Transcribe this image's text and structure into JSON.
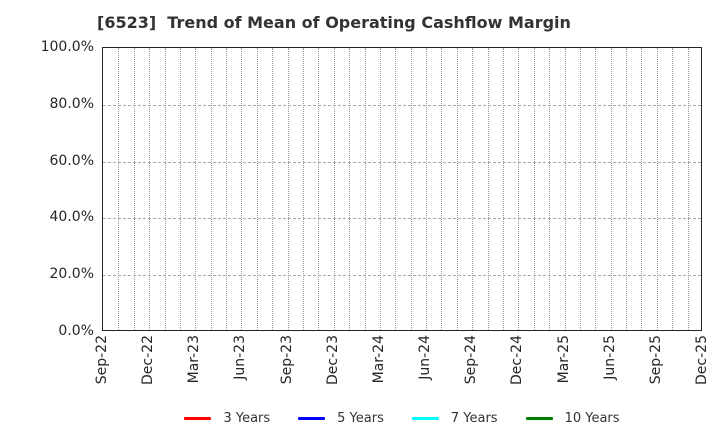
{
  "chart_data": {
    "type": "line",
    "title": "[6523]  Trend of Mean of Operating Cashflow Margin",
    "stock_code": "6523",
    "xlabel": "",
    "ylabel": "",
    "ylim": [
      0,
      100
    ],
    "y_tick_labels": [
      "100.0%",
      "80.0%",
      "60.0%",
      "40.0%",
      "20.0%",
      "0.0%"
    ],
    "x_tick_labels": [
      "Sep-22",
      "Dec-22",
      "Mar-23",
      "Jun-23",
      "Sep-23",
      "Dec-23",
      "Mar-24",
      "Jun-24",
      "Sep-24",
      "Dec-24",
      "Mar-25",
      "Jun-25",
      "Sep-25",
      "Dec-25"
    ],
    "x_months_between_ticks": 3,
    "x_month_intervals_total": 39,
    "grid": true,
    "grid_style": {
      "vertical": "dotted-monthly",
      "horizontal": "dashed-every-20pct",
      "color": "#aaaaaa"
    },
    "legend_position": "bottom-center",
    "series": [
      {
        "name": "3 Years",
        "color": "#ff0000",
        "values": []
      },
      {
        "name": "5 Years",
        "color": "#0000ff",
        "values": []
      },
      {
        "name": "7 Years",
        "color": "#00ffff",
        "values": []
      },
      {
        "name": "10 Years",
        "color": "#008000",
        "values": []
      }
    ]
  }
}
